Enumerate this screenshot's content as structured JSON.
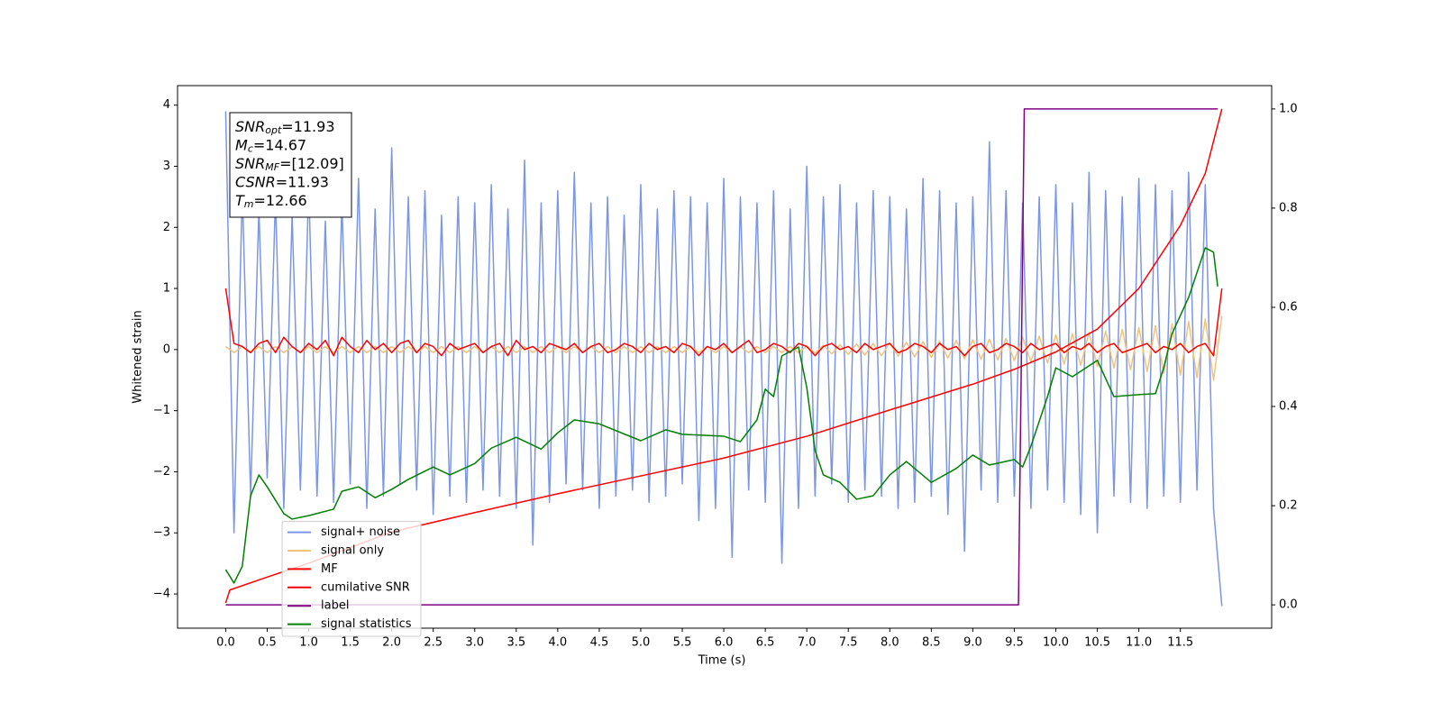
{
  "chart_data": {
    "type": "line",
    "xlabel": "Time (s)",
    "ylabel": "Whitened strain",
    "xlim": [
      -0.58,
      12.6
    ],
    "ylim": [
      -4.56,
      4.32
    ],
    "y2lim": [
      -0.047,
      1.047
    ],
    "xticks": [
      {
        "value": 0,
        "label": "0.0"
      },
      0.5,
      {
        "value": 1,
        "label": "1.0"
      },
      1.5,
      {
        "value": 2,
        "label": "2.0"
      },
      2.5,
      {
        "value": 3,
        "label": "3.0"
      },
      3.5,
      {
        "value": 4,
        "label": "4.0"
      },
      4.5,
      {
        "value": 5,
        "label": "5.0"
      },
      5.5,
      {
        "value": 6,
        "label": "6.0"
      },
      6.5,
      {
        "value": 7,
        "label": "7.0"
      },
      7.5,
      {
        "value": 8,
        "label": "8.0"
      },
      8.5,
      {
        "value": 9,
        "label": "9.0"
      },
      9.5,
      {
        "value": 10,
        "label": "10.0"
      },
      10.5,
      {
        "value": 11,
        "label": "11.0"
      },
      11.5
    ],
    "yticks": [
      {
        "value": -4,
        "label": "−4"
      },
      {
        "value": -3,
        "label": "−3"
      },
      {
        "value": -2,
        "label": "−2"
      },
      {
        "value": -1,
        "label": "−1"
      },
      0,
      1,
      2,
      3,
      4
    ],
    "y2ticks": [
      {
        "value": 0,
        "label": "0.0"
      },
      0.2,
      0.4,
      0.6,
      0.8,
      {
        "value": 1,
        "label": "1.0"
      }
    ],
    "grid": false,
    "legend": "lower left",
    "annotations": [
      {
        "main": "SNR",
        "sub": "opt",
        "text": "=11.93"
      },
      {
        "main": "M",
        "sub": "c",
        "text": "=14.67"
      },
      {
        "main": "SNR",
        "sub": "MF",
        "text": "=[12.09]"
      },
      {
        "main": "CSNR",
        "text": "=11.93"
      },
      {
        "main": "T",
        "sub": "m",
        "text": "=12.66"
      }
    ],
    "x": [
      0,
      0.1,
      0.2,
      0.3,
      0.4,
      0.5,
      0.6,
      0.7,
      0.8,
      0.9,
      1,
      1.1,
      1.2,
      1.3,
      1.4,
      1.5,
      1.6,
      1.7,
      1.8,
      1.9,
      2,
      2.1,
      2.2,
      2.3,
      2.4,
      2.5,
      2.6,
      2.7,
      2.8,
      2.9,
      3,
      3.1,
      3.2,
      3.3,
      3.4,
      3.5,
      3.6,
      3.7,
      3.8,
      3.9,
      4,
      4.1,
      4.2,
      4.3,
      4.4,
      4.5,
      4.6,
      4.7,
      4.8,
      4.9,
      5,
      5.1,
      5.2,
      5.3,
      5.4,
      5.5,
      5.6,
      5.7,
      5.8,
      5.9,
      6,
      6.1,
      6.2,
      6.3,
      6.4,
      6.5,
      6.6,
      6.7,
      6.8,
      6.9,
      7,
      7.1,
      7.2,
      7.3,
      7.4,
      7.5,
      7.6,
      7.7,
      7.8,
      7.9,
      8,
      8.1,
      8.2,
      8.3,
      8.4,
      8.5,
      8.6,
      8.7,
      8.8,
      8.9,
      9,
      9.1,
      9.2,
      9.3,
      9.4,
      9.5,
      9.6,
      9.7,
      9.8,
      9.9,
      10,
      10.1,
      10.2,
      10.3,
      10.4,
      10.5,
      10.6,
      10.7,
      10.8,
      10.9,
      11,
      11.1,
      11.2,
      11.3,
      11.4,
      11.5,
      11.6,
      11.7,
      11.8,
      11.9,
      12
    ],
    "series": [
      {
        "name": "signal+ noise",
        "color": "#7b96e6",
        "values": [
          3.9,
          -3.0,
          2.6,
          -2.4,
          2.3,
          -2.1,
          2.5,
          -2.6,
          2.2,
          -2.3,
          2.7,
          -2.4,
          2.1,
          -2.5,
          2.4,
          -2.2,
          2.8,
          -2.6,
          2.3,
          -2.4,
          3.3,
          -2.2,
          2.5,
          -2.3,
          2.6,
          -2.7,
          2.2,
          -2.4,
          2.5,
          -2.5,
          2.4,
          -2.3,
          2.7,
          -2.4,
          2.3,
          -2.6,
          3.1,
          -3.2,
          2.4,
          -2.5,
          2.6,
          -2.2,
          2.9,
          -2.3,
          2.4,
          -2.6,
          2.5,
          -2.4,
          2.2,
          -2.3,
          2.7,
          -2.5,
          2.3,
          -2.4,
          2.6,
          -2.2,
          2.5,
          -2.8,
          2.4,
          -2.6,
          2.8,
          -3.4,
          2.5,
          -2.3,
          2.4,
          -2.5,
          2.6,
          -3.5,
          2.3,
          -2.6,
          3.0,
          -2.4,
          2.5,
          -2.2,
          2.7,
          -2.5,
          2.4,
          -2.3,
          2.6,
          -2.4,
          2.5,
          -2.6,
          2.3,
          -2.5,
          2.8,
          -2.4,
          2.6,
          -2.7,
          2.4,
          -3.3,
          2.5,
          -2.3,
          3.4,
          -2.5,
          2.6,
          -2.4,
          2.4,
          -2.6,
          2.5,
          -2.3,
          2.7,
          -2.5,
          2.4,
          -2.7,
          2.9,
          -3.0,
          2.6,
          -2.4,
          2.5,
          -2.5,
          2.8,
          -2.6,
          2.7,
          -2.4,
          2.6,
          -2.5,
          2.9,
          -2.3,
          2.7,
          -2.6,
          -4.2
        ]
      },
      {
        "name": "signal only",
        "color": "#f2c27a",
        "values": [
          0.05,
          -0.05,
          0.05,
          -0.05,
          0.05,
          -0.05,
          0.05,
          -0.05,
          0.05,
          -0.05,
          0.05,
          -0.05,
          0.05,
          -0.05,
          0.05,
          -0.05,
          0.05,
          -0.05,
          0.05,
          -0.05,
          0.05,
          -0.05,
          0.05,
          -0.05,
          0.05,
          -0.05,
          0.05,
          -0.05,
          0.05,
          -0.05,
          0.05,
          -0.05,
          0.05,
          -0.05,
          0.05,
          -0.05,
          0.05,
          -0.05,
          0.05,
          -0.05,
          0.05,
          -0.05,
          0.05,
          -0.05,
          0.05,
          -0.05,
          0.05,
          -0.05,
          0.05,
          -0.05,
          0.05,
          -0.05,
          0.05,
          -0.05,
          0.05,
          -0.05,
          0.05,
          -0.05,
          0.05,
          -0.05,
          0.05,
          -0.05,
          0.05,
          -0.05,
          0.05,
          -0.05,
          0.05,
          -0.05,
          0.05,
          -0.05,
          0.06,
          -0.06,
          0.07,
          -0.07,
          0.08,
          -0.08,
          0.09,
          -0.09,
          0.1,
          -0.1,
          0.11,
          -0.11,
          0.12,
          -0.12,
          0.13,
          -0.13,
          0.14,
          -0.14,
          0.15,
          -0.15,
          0.16,
          -0.16,
          0.17,
          -0.17,
          0.18,
          -0.18,
          0.2,
          -0.2,
          0.22,
          -0.22,
          0.24,
          -0.24,
          0.26,
          -0.26,
          0.28,
          -0.28,
          0.3,
          -0.3,
          0.33,
          -0.33,
          0.36,
          -0.36,
          0.39,
          -0.39,
          0.42,
          -0.42,
          0.46,
          -0.46,
          0.5,
          -0.5,
          0.55
        ]
      },
      {
        "name": "MF",
        "color": "#ff0000",
        "values": [
          1.0,
          0.1,
          0.05,
          -0.05,
          0.1,
          0.15,
          -0.05,
          0.2,
          0.05,
          -0.05,
          0.1,
          0.0,
          0.15,
          -0.1,
          0.2,
          0.05,
          -0.05,
          0.15,
          0.0,
          0.1,
          -0.05,
          0.1,
          0.15,
          -0.05,
          0.1,
          0.05,
          -0.1,
          0.1,
          0.0,
          0.05,
          0.1,
          -0.05,
          0.05,
          0.1,
          -0.1,
          0.15,
          0.0,
          0.05,
          -0.05,
          0.1,
          0.05,
          0.0,
          0.1,
          -0.05,
          0.05,
          0.1,
          -0.05,
          0.0,
          0.1,
          0.05,
          -0.05,
          0.1,
          0.0,
          0.05,
          -0.05,
          0.1,
          0.05,
          -0.1,
          0.05,
          0.0,
          0.1,
          -0.05,
          0.05,
          0.15,
          -0.05,
          0.0,
          0.1,
          0.05,
          -0.05,
          0.1,
          0.05,
          -0.1,
          0.05,
          0.1,
          0.0,
          0.05,
          -0.05,
          0.1,
          0.0,
          0.05,
          0.1,
          -0.05,
          0.0,
          0.1,
          0.05,
          -0.05,
          0.1,
          0.0,
          0.05,
          -0.1,
          0.05,
          0.1,
          -0.05,
          0.0,
          0.1,
          0.05,
          -0.05,
          0.1,
          0.0,
          0.05,
          0.1,
          -0.05,
          0.05,
          0.0,
          0.1,
          -0.05,
          0.05,
          0.1,
          -0.05,
          0.0,
          0.05,
          0.1,
          -0.05,
          0.05,
          0.0,
          0.1,
          -0.05,
          0.05,
          0.1,
          -0.1,
          1.0
        ]
      },
      {
        "name": "cumilative SNR",
        "color": "#ff0000",
        "axis": "y2",
        "x": [
          0,
          0.05,
          0.5,
          1,
          2,
          3,
          4,
          5,
          6,
          7,
          8,
          9,
          9.5,
          10,
          10.5,
          11,
          11.5,
          11.8,
          12
        ],
        "values": [
          0.004,
          0.03,
          0.056,
          0.084,
          0.147,
          0.186,
          0.224,
          0.26,
          0.296,
          0.34,
          0.393,
          0.445,
          0.475,
          0.51,
          0.556,
          0.638,
          0.765,
          0.87,
          1.0
        ]
      },
      {
        "name": "label",
        "color": "#800080",
        "axis": "y2",
        "x": [
          0,
          9.55,
          9.62,
          11.95
        ],
        "values": [
          0,
          0,
          1,
          1
        ]
      },
      {
        "name": "signal statistics",
        "color": "#008000",
        "axis": "y2",
        "x": [
          0,
          0.1,
          0.2,
          0.3,
          0.4,
          0.5,
          0.7,
          0.8,
          1.0,
          1.3,
          1.4,
          1.6,
          1.8,
          2.0,
          2.2,
          2.5,
          2.7,
          3.0,
          3.2,
          3.5,
          3.8,
          4.0,
          4.2,
          4.5,
          5.0,
          5.3,
          5.5,
          6.0,
          6.2,
          6.4,
          6.5,
          6.6,
          6.7,
          6.9,
          7.0,
          7.1,
          7.2,
          7.4,
          7.6,
          7.8,
          8.0,
          8.2,
          8.5,
          8.8,
          9.0,
          9.2,
          9.5,
          9.6,
          9.7,
          9.9,
          10.0,
          10.2,
          10.5,
          10.7,
          11.0,
          11.2,
          11.3,
          11.4,
          11.6,
          11.8,
          11.9,
          11.95
        ],
        "values": [
          0.071,
          0.044,
          0.078,
          0.22,
          0.262,
          0.238,
          0.184,
          0.173,
          0.18,
          0.193,
          0.229,
          0.238,
          0.216,
          0.233,
          0.253,
          0.278,
          0.262,
          0.285,
          0.316,
          0.338,
          0.314,
          0.347,
          0.373,
          0.365,
          0.331,
          0.353,
          0.344,
          0.34,
          0.329,
          0.373,
          0.435,
          0.42,
          0.502,
          0.52,
          0.438,
          0.311,
          0.262,
          0.247,
          0.213,
          0.22,
          0.262,
          0.289,
          0.247,
          0.275,
          0.302,
          0.282,
          0.293,
          0.278,
          0.32,
          0.42,
          0.478,
          0.46,
          0.493,
          0.42,
          0.424,
          0.426,
          0.478,
          0.547,
          0.62,
          0.72,
          0.711,
          0.642
        ]
      }
    ]
  }
}
